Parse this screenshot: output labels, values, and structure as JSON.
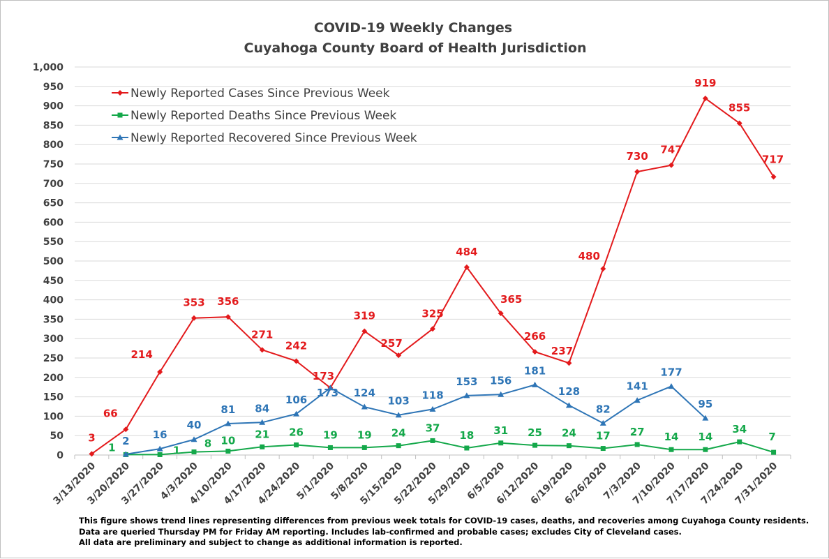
{
  "chart_data": {
    "type": "line",
    "title": "COVID-19 Weekly Changes",
    "subtitle": "Cuyahoga County Board of Health Jurisdiction",
    "xlabel": "",
    "ylabel": "",
    "ylim": [
      0,
      1000
    ],
    "y_tick_step": 50,
    "y_tick_labels": [
      "0",
      "50",
      "100",
      "150",
      "200",
      "250",
      "300",
      "350",
      "400",
      "450",
      "500",
      "550",
      "600",
      "650",
      "700",
      "750",
      "800",
      "850",
      "900",
      "950",
      "1,000"
    ],
    "grid": "horizontal",
    "legend_position": "top-left",
    "categories": [
      "3/13/2020",
      "3/20/2020",
      "3/27/2020",
      "4/3/2020",
      "4/10/2020",
      "4/17/2020",
      "4/24/2020",
      "5/1/2020",
      "5/8/2020",
      "5/15/2020",
      "5/22/2020",
      "5/29/2020",
      "6/5/2020",
      "6/12/2020",
      "6/19/2020",
      "6/26/2020",
      "7/3/2020",
      "7/10/2020",
      "7/17/2020",
      "7/24/2020",
      "7/31/2020"
    ],
    "series": [
      {
        "name": "Newly Reported Cases Since Previous Week",
        "color": "#e31a1c",
        "marker": "diamond",
        "values": [
          3,
          66,
          214,
          353,
          356,
          271,
          242,
          173,
          319,
          257,
          325,
          484,
          365,
          266,
          237,
          480,
          730,
          747,
          919,
          855,
          717
        ]
      },
      {
        "name": "Newly Reported Deaths Since Previous Week",
        "color": "#14a84a",
        "marker": "square",
        "values": [
          null,
          1,
          1,
          8,
          10,
          21,
          26,
          19,
          19,
          24,
          37,
          18,
          31,
          25,
          24,
          17,
          27,
          14,
          14,
          34,
          7
        ]
      },
      {
        "name": "Newly Reported Recovered Since Previous Week",
        "color": "#2e75b6",
        "marker": "triangle",
        "values": [
          null,
          2,
          16,
          40,
          81,
          84,
          106,
          173,
          124,
          103,
          118,
          153,
          156,
          181,
          128,
          82,
          141,
          177,
          95,
          null,
          null
        ]
      }
    ]
  },
  "footnotes": [
    "This figure shows trend lines representing differences from previous week totals for COVID-19 cases, deaths, and recoveries among Cuyahoga County residents.",
    "Data are queried Thursday PM for Friday AM reporting. Includes lab-confirmed and probable cases; excludes City of Cleveland cases.",
    "All data are preliminary and subject to change as additional information is reported."
  ]
}
